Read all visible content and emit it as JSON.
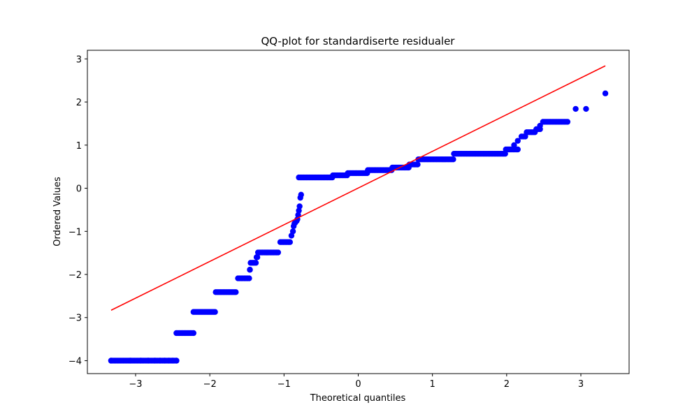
{
  "chart_data": {
    "type": "scatter",
    "title": "QQ-plot for standardiserte residualer",
    "xlabel": "Theoretical quantiles",
    "ylabel": "Ordered Values",
    "xlim": [
      -3.65,
      3.65
    ],
    "ylim": [
      -4.3,
      3.2
    ],
    "xticks": [
      -3,
      -2,
      -1,
      0,
      1,
      2,
      3
    ],
    "yticks": [
      -4,
      -3,
      -2,
      -1,
      0,
      1,
      2,
      3
    ],
    "grid": false,
    "legend": "none",
    "colors": {
      "points": "#0000ff",
      "line": "#ff0000"
    },
    "fit_line": {
      "x": [
        -3.33,
        3.33
      ],
      "y": [
        -2.83,
        2.84
      ]
    },
    "plateaus": [
      {
        "y": -4.0,
        "x_start": -3.33,
        "x_end": -2.45
      },
      {
        "y": -3.36,
        "x_start": -2.45,
        "x_end": -2.22
      },
      {
        "y": -2.87,
        "x_start": -2.22,
        "x_end": -1.93
      },
      {
        "y": -2.41,
        "x_start": -1.92,
        "x_end": -1.65
      },
      {
        "y": -2.09,
        "x_start": -1.62,
        "x_end": -1.47
      },
      {
        "y": -1.89,
        "x_start": -1.46,
        "x_end": -1.46
      },
      {
        "y": -1.73,
        "x_start": -1.45,
        "x_end": -1.38
      },
      {
        "y": -1.6,
        "x_start": -1.37,
        "x_end": -1.36
      },
      {
        "y": -1.49,
        "x_start": -1.35,
        "x_end": -1.08
      },
      {
        "y": -1.25,
        "x_start": -1.05,
        "x_end": -0.92
      },
      {
        "y": 0.25,
        "x_start": -0.8,
        "x_end": -0.35
      },
      {
        "y": 0.3,
        "x_start": -0.34,
        "x_end": -0.15
      },
      {
        "y": 0.35,
        "x_start": -0.14,
        "x_end": 0.12
      },
      {
        "y": 0.42,
        "x_start": 0.13,
        "x_end": 0.45
      },
      {
        "y": 0.48,
        "x_start": 0.46,
        "x_end": 0.68
      },
      {
        "y": 0.55,
        "x_start": 0.69,
        "x_end": 0.8
      },
      {
        "y": 0.67,
        "x_start": 0.81,
        "x_end": 1.28
      },
      {
        "y": 0.8,
        "x_start": 1.29,
        "x_end": 1.98
      },
      {
        "y": 0.9,
        "x_start": 1.99,
        "x_end": 2.15
      },
      {
        "y": 1.2,
        "x_start": 2.2,
        "x_end": 2.25
      },
      {
        "y": 1.3,
        "x_start": 2.27,
        "x_end": 2.38
      },
      {
        "y": 1.37,
        "x_start": 2.4,
        "x_end": 2.45
      },
      {
        "y": 1.54,
        "x_start": 2.49,
        "x_end": 2.82
      }
    ],
    "points": [
      [
        -3.33,
        -4.0
      ],
      [
        -3.07,
        -4.0
      ],
      [
        -2.93,
        -4.0
      ],
      [
        -2.83,
        -4.0
      ],
      [
        -2.74,
        -4.0
      ],
      [
        -2.67,
        -4.0
      ],
      [
        -2.61,
        -4.0
      ],
      [
        -2.55,
        -4.0
      ],
      [
        -2.5,
        -4.0
      ],
      [
        -2.45,
        -4.0
      ],
      [
        -0.9,
        -1.1
      ],
      [
        -0.88,
        -1.0
      ],
      [
        -0.87,
        -0.88
      ],
      [
        -0.86,
        -0.82
      ],
      [
        -0.85,
        -0.8
      ],
      [
        -0.83,
        -0.76
      ],
      [
        -0.82,
        -0.72
      ],
      [
        -0.81,
        -0.62
      ],
      [
        -0.8,
        -0.52
      ],
      [
        -0.79,
        -0.42
      ],
      [
        -0.78,
        -0.22
      ],
      [
        -0.77,
        -0.15
      ],
      [
        2.1,
        1.0
      ],
      [
        2.15,
        1.1
      ],
      [
        2.45,
        1.45
      ],
      [
        2.93,
        1.84
      ],
      [
        3.07,
        1.84
      ],
      [
        3.33,
        2.2
      ]
    ]
  }
}
